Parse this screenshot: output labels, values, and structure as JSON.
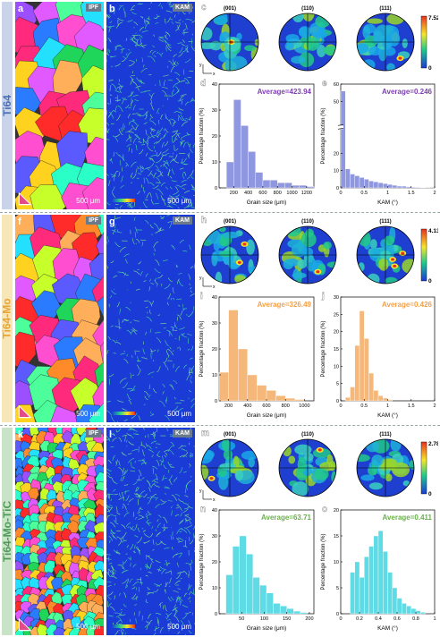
{
  "rows": [
    {
      "sample": "Ti64",
      "sample_color": "#4a6fb5",
      "sidebar_bg": "#c9d3ea",
      "labels": {
        "ipf": "a",
        "kam": "b",
        "pf": "c",
        "hist1": "d",
        "hist2": "e"
      },
      "ipf_tag": "IPF",
      "kam_tag": "KAM",
      "scale_ipf": "500 μm",
      "scale_kam": "500 μm",
      "pole_titles": [
        "(001)",
        "(110)",
        "(111)"
      ],
      "colorbar_max": "7.52",
      "colorbar_min": "0",
      "hist_color": "#8f97e0",
      "hist_text_color": "#7b3fb0",
      "axis_x": "x",
      "axis_y": "y",
      "grain": {
        "type": "bar",
        "annotation": "Average=423.94",
        "xlabel": "Grain size (μm)",
        "ylabel": "Percentage fraction (%)",
        "xlim": [
          0,
          1300
        ],
        "ylim": [
          0,
          40
        ],
        "xticks": [
          200,
          400,
          600,
          800,
          1000,
          1200
        ],
        "yticks": [
          0,
          10,
          20,
          30,
          40
        ],
        "bin_edges": [
          100,
          200,
          300,
          400,
          500,
          600,
          700,
          800,
          900,
          1000,
          1100,
          1200,
          1300
        ],
        "values": [
          10,
          34,
          24,
          14,
          6,
          3,
          3,
          2,
          2,
          1,
          1,
          0.5
        ]
      },
      "kam": {
        "type": "bar",
        "annotation": "Average=0.246",
        "xlabel": "KAM (°)",
        "ylabel": "Percentage fraction (%)",
        "xlim": [
          0,
          2.0
        ],
        "ylim": [
          0,
          60
        ],
        "xticks": [
          0.0,
          0.5,
          1.0,
          1.5,
          2.0
        ],
        "yticks": [
          0,
          10,
          20,
          50,
          60
        ],
        "axis_break": true,
        "bin_edges": [
          0,
          0.1,
          0.2,
          0.3,
          0.4,
          0.5,
          0.6,
          0.7,
          0.8,
          0.9,
          1.0,
          1.1,
          1.2,
          1.3,
          1.4,
          1.5,
          1.6,
          1.7,
          1.8,
          1.9,
          2.0
        ],
        "values": [
          56,
          11,
          8,
          7,
          6,
          5,
          4,
          3.5,
          3,
          2.5,
          2,
          1.5,
          1,
          1,
          0.6,
          0.4,
          0.3,
          0.2,
          0.1,
          0.05
        ]
      }
    },
    {
      "sample": "Ti64-Mo",
      "sample_color": "#e6a43a",
      "sidebar_bg": "#f6e6b8",
      "labels": {
        "ipf": "f",
        "kam": "g",
        "pf": "h",
        "hist1": "i",
        "hist2": "j"
      },
      "ipf_tag": "IPF",
      "kam_tag": "KAM",
      "scale_ipf": "500 μm",
      "scale_kam": "500 μm",
      "pole_titles": [
        "(001)",
        "(110)",
        "(111)"
      ],
      "colorbar_max": "4.13",
      "colorbar_min": "0",
      "hist_color": "#f5b87a",
      "hist_text_color": "#f5a04a",
      "axis_x": "x",
      "axis_y": "y",
      "grain": {
        "type": "bar",
        "annotation": "Average=326.49",
        "xlabel": "Grain size (μm)",
        "ylabel": "Percentage fraction (%)",
        "xlim": [
          100,
          1100
        ],
        "ylim": [
          0,
          40
        ],
        "xticks": [
          200,
          400,
          600,
          800,
          1000
        ],
        "yticks": [
          0,
          10,
          20,
          30,
          40
        ],
        "bin_edges": [
          100,
          200,
          300,
          400,
          500,
          600,
          700,
          800,
          900,
          1000
        ],
        "values": [
          11,
          35,
          20,
          10,
          6,
          4,
          2,
          1,
          0.5
        ]
      },
      "kam": {
        "type": "bar",
        "annotation": "Average=0.426",
        "xlabel": "KAM (°)",
        "ylabel": "Percentage fraction (%)",
        "xlim": [
          0,
          2.0
        ],
        "ylim": [
          0,
          30
        ],
        "xticks": [
          0.0,
          0.5,
          1.0,
          1.5,
          2.0
        ],
        "yticks": [
          0,
          5,
          10,
          15,
          20,
          25,
          30
        ],
        "axis_break": false,
        "bin_edges": [
          0.1,
          0.2,
          0.3,
          0.4,
          0.5,
          0.6,
          0.7,
          0.8,
          0.9,
          1.0,
          1.1
        ],
        "values": [
          1,
          4,
          16,
          26,
          18,
          8,
          3,
          1.5,
          0.8,
          0.3
        ]
      }
    },
    {
      "sample": "Ti64-Mo-TiC",
      "sample_color": "#4f9a5a",
      "sidebar_bg": "#c9e3c6",
      "labels": {
        "ipf": "k",
        "kam": "l",
        "pf": "m",
        "hist1": "n",
        "hist2": "o"
      },
      "ipf_tag": "IPF",
      "kam_tag": "KAM",
      "scale_ipf": "500 μm",
      "scale_kam": "500 μm",
      "pole_titles": [
        "(001)",
        "(110)",
        "(111)"
      ],
      "colorbar_max": "2.78",
      "colorbar_min": "0",
      "hist_color": "#5fdbe5",
      "hist_text_color": "#6ab04c",
      "axis_x": "x",
      "axis_y": "y",
      "grain": {
        "type": "bar",
        "annotation": "Average=63.71",
        "xlabel": "Grain size (μm)",
        "ylabel": "Percentage fraction (%)",
        "xlim": [
          0,
          210
        ],
        "ylim": [
          0,
          40
        ],
        "xticks": [
          50,
          100,
          150,
          200
        ],
        "yticks": [
          0,
          10,
          20,
          30,
          40
        ],
        "bin_edges": [
          15,
          30,
          45,
          60,
          75,
          90,
          105,
          120,
          135,
          150,
          165,
          180,
          195
        ],
        "values": [
          15,
          26,
          30,
          23,
          14,
          11,
          8,
          4,
          3,
          2,
          1,
          0.5
        ]
      },
      "kam": {
        "type": "bar",
        "annotation": "Average=0.411",
        "xlabel": "KAM (°)",
        "ylabel": "Percentage fraction (%)",
        "xlim": [
          0,
          1.0
        ],
        "ylim": [
          0,
          20
        ],
        "xticks": [
          0.0,
          0.2,
          0.4,
          0.6,
          0.8,
          1.0
        ],
        "yticks": [
          0,
          5,
          10,
          15,
          20
        ],
        "axis_break": false,
        "bin_edges": [
          0.1,
          0.15,
          0.2,
          0.25,
          0.3,
          0.35,
          0.4,
          0.45,
          0.5,
          0.55,
          0.6,
          0.65,
          0.7,
          0.75,
          0.8,
          0.85,
          0.9
        ],
        "values": [
          8,
          10,
          7,
          11,
          13,
          15,
          16,
          12,
          8,
          5,
          3,
          2,
          1.5,
          1,
          0.6,
          0.3
        ]
      }
    }
  ]
}
